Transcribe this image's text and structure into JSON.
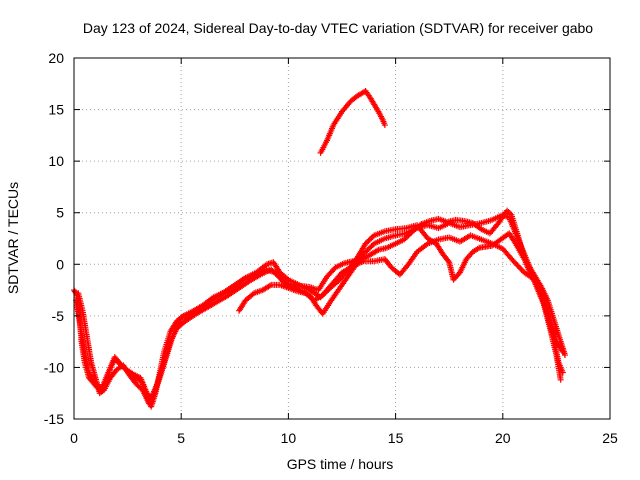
{
  "chart_data": {
    "type": "scatter",
    "title": "Day 123 of 2024, Sidereal Day-to-day VTEC variation (SDTVAR) for receiver gabo",
    "xlabel": "GPS time / hours",
    "ylabel": "SDTVAR / TECUs",
    "xlim": [
      0,
      25
    ],
    "ylim": [
      -15,
      20
    ],
    "x_ticks": [
      0,
      5,
      10,
      15,
      20,
      25
    ],
    "y_ticks": [
      -15,
      -10,
      -5,
      0,
      5,
      10,
      15,
      20
    ],
    "grid": true,
    "marker": "+",
    "color": "#ff0000",
    "traces": [
      [
        [
          0,
          -2.5
        ],
        [
          0.15,
          -3
        ],
        [
          0.25,
          -5
        ],
        [
          0.35,
          -7.5
        ],
        [
          0.5,
          -9.5
        ],
        [
          0.7,
          -11
        ],
        [
          0.9,
          -11.5
        ],
        [
          1.1,
          -12
        ],
        [
          1.3,
          -12.3
        ],
        [
          1.5,
          -11.5
        ],
        [
          1.7,
          -10
        ],
        [
          1.9,
          -9
        ],
        [
          2.1,
          -9.5
        ],
        [
          2.3,
          -10
        ],
        [
          2.6,
          -10.5
        ],
        [
          2.9,
          -11
        ],
        [
          3.2,
          -11.5
        ],
        [
          3.4,
          -13
        ],
        [
          3.6,
          -13.8
        ],
        [
          3.8,
          -12.5
        ],
        [
          4.0,
          -10.5
        ],
        [
          4.2,
          -8.5
        ],
        [
          4.5,
          -6.5
        ],
        [
          4.8,
          -5.5
        ],
        [
          5.1,
          -5.0
        ],
        [
          5.5,
          -4.6
        ],
        [
          6.0,
          -4.0
        ],
        [
          6.5,
          -3.2
        ],
        [
          7.0,
          -2.7
        ],
        [
          7.5,
          -2.0
        ],
        [
          8.0,
          -1.3
        ],
        [
          8.5,
          -0.8
        ],
        [
          9.0,
          0.0
        ],
        [
          9.3,
          0.2
        ],
        [
          9.6,
          -0.8
        ],
        [
          10.0,
          -1.5
        ],
        [
          10.5,
          -2.0
        ],
        [
          11.0,
          -2.5
        ],
        [
          11.5,
          -3.2
        ],
        [
          12.0,
          -2.0
        ],
        [
          12.5,
          -0.8
        ],
        [
          13.0,
          -0.2
        ],
        [
          13.5,
          0.3
        ],
        [
          14.0,
          0.3
        ],
        [
          14.5,
          0.5
        ],
        [
          14.8,
          -0.3
        ],
        [
          15.2,
          -1.0
        ],
        [
          15.6,
          0.0
        ],
        [
          16.0,
          1.2
        ],
        [
          16.5,
          2.0
        ],
        [
          17.0,
          2.4
        ],
        [
          17.5,
          2.6
        ],
        [
          18.0,
          2.2
        ],
        [
          18.5,
          2.8
        ],
        [
          19.0,
          2.4
        ],
        [
          19.5,
          2.0
        ],
        [
          20.0,
          1.5
        ],
        [
          20.5,
          0.3
        ],
        [
          21.0,
          -0.8
        ],
        [
          21.5,
          -1.5
        ],
        [
          22.0,
          -3.5
        ],
        [
          22.3,
          -6.0
        ],
        [
          22.5,
          -7.5
        ],
        [
          22.8,
          -8.5
        ]
      ],
      [
        [
          0.1,
          -3.5
        ],
        [
          0.3,
          -6
        ],
        [
          0.5,
          -8.5
        ],
        [
          0.7,
          -10.5
        ],
        [
          0.9,
          -11.2
        ],
        [
          1.1,
          -11.8
        ],
        [
          1.3,
          -12.0
        ],
        [
          1.6,
          -10.5
        ],
        [
          1.9,
          -9.2
        ],
        [
          2.2,
          -9.8
        ],
        [
          2.5,
          -10.3
        ],
        [
          2.8,
          -10.7
        ],
        [
          3.1,
          -11.0
        ],
        [
          3.4,
          -12.5
        ],
        [
          3.6,
          -13.0
        ],
        [
          3.9,
          -11.5
        ],
        [
          4.2,
          -9.5
        ],
        [
          4.5,
          -7.5
        ],
        [
          4.8,
          -6.2
        ],
        [
          5.2,
          -5.5
        ],
        [
          5.7,
          -4.8
        ],
        [
          6.2,
          -4.2
        ],
        [
          6.7,
          -3.6
        ],
        [
          7.2,
          -3.0
        ],
        [
          7.7,
          -2.3
        ],
        [
          8.2,
          -1.6
        ],
        [
          8.7,
          -1.0
        ],
        [
          9.2,
          -0.5
        ],
        [
          9.6,
          -1.3
        ],
        [
          10.0,
          -2.0
        ],
        [
          10.5,
          -2.5
        ],
        [
          11.0,
          -3.0
        ],
        [
          11.3,
          -4.0
        ],
        [
          11.6,
          -4.8
        ],
        [
          12.0,
          -3.5
        ],
        [
          12.5,
          -2.0
        ],
        [
          13.0,
          -0.5
        ],
        [
          13.5,
          1.0
        ],
        [
          14.0,
          2.0
        ],
        [
          14.5,
          2.5
        ],
        [
          15.0,
          2.8
        ],
        [
          15.5,
          3.0
        ],
        [
          16.0,
          3.5
        ],
        [
          16.5,
          3.8
        ],
        [
          17.0,
          3.5
        ],
        [
          17.5,
          4.0
        ],
        [
          18.0,
          3.6
        ],
        [
          18.5,
          3.8
        ],
        [
          19.0,
          4.0
        ],
        [
          19.5,
          4.3
        ],
        [
          20.0,
          4.8
        ],
        [
          20.3,
          4.5
        ],
        [
          20.6,
          3.0
        ],
        [
          21.0,
          1.0
        ],
        [
          21.4,
          -1.0
        ],
        [
          21.8,
          -3.0
        ],
        [
          22.1,
          -5.0
        ],
        [
          22.4,
          -7.5
        ],
        [
          22.6,
          -9.5
        ],
        [
          22.8,
          -10.5
        ]
      ],
      [
        [
          7.7,
          -4.5
        ],
        [
          8.0,
          -3.5
        ],
        [
          8.4,
          -2.8
        ],
        [
          8.8,
          -2.5
        ],
        [
          9.2,
          -2.0
        ],
        [
          9.6,
          -2.0
        ],
        [
          10.0,
          -2.3
        ],
        [
          10.4,
          -2.6
        ],
        [
          10.8,
          -2.8
        ],
        [
          11.2,
          -3.5
        ],
        [
          11.6,
          -3.0
        ],
        [
          12.0,
          -2.2
        ],
        [
          12.4,
          -1.5
        ],
        [
          12.8,
          -0.5
        ],
        [
          13.2,
          0.6
        ],
        [
          13.6,
          2.0
        ],
        [
          14.0,
          2.8
        ],
        [
          14.5,
          3.2
        ],
        [
          15.0,
          3.4
        ],
        [
          15.5,
          3.5
        ],
        [
          16.0,
          3.8
        ],
        [
          16.5,
          2.5
        ],
        [
          16.9,
          2.0
        ],
        [
          17.2,
          1.0
        ],
        [
          17.5,
          0.2
        ],
        [
          17.7,
          -1.5
        ],
        [
          18.0,
          -0.8
        ],
        [
          18.3,
          0.5
        ],
        [
          18.6,
          1.2
        ],
        [
          18.9,
          1.6
        ],
        [
          19.2,
          1.7
        ],
        [
          19.5,
          1.8
        ],
        [
          19.9,
          2.4
        ],
        [
          20.3,
          3.0
        ],
        [
          20.6,
          2.0
        ],
        [
          21.0,
          0.5
        ],
        [
          21.4,
          -0.8
        ],
        [
          21.8,
          -2.2
        ],
        [
          22.1,
          -3.5
        ],
        [
          22.4,
          -5.5
        ],
        [
          22.7,
          -7.5
        ],
        [
          22.9,
          -8.8
        ]
      ],
      [
        [
          11.5,
          10.8
        ],
        [
          11.8,
          12.0
        ],
        [
          12.1,
          13.5
        ],
        [
          12.5,
          14.8
        ],
        [
          12.9,
          15.8
        ],
        [
          13.2,
          16.3
        ],
        [
          13.6,
          16.8
        ],
        [
          13.8,
          16.2
        ],
        [
          14.0,
          15.5
        ],
        [
          14.2,
          14.8
        ],
        [
          14.4,
          14.0
        ],
        [
          14.5,
          13.5
        ]
      ],
      [
        [
          0.2,
          -2.8
        ],
        [
          0.4,
          -4.5
        ],
        [
          0.6,
          -7.0
        ],
        [
          0.8,
          -9.5
        ],
        [
          1.0,
          -11.0
        ],
        [
          1.2,
          -12.5
        ],
        [
          1.4,
          -12.2
        ],
        [
          1.7,
          -11.0
        ],
        [
          2.0,
          -10.2
        ],
        [
          2.3,
          -9.8
        ],
        [
          2.6,
          -10.8
        ],
        [
          2.9,
          -11.6
        ],
        [
          3.2,
          -12.2
        ],
        [
          3.5,
          -13.5
        ],
        [
          3.7,
          -12.8
        ],
        [
          4.0,
          -11.0
        ],
        [
          4.3,
          -9.0
        ],
        [
          4.6,
          -7.0
        ],
        [
          5.0,
          -5.2
        ],
        [
          5.4,
          -4.9
        ],
        [
          5.9,
          -4.4
        ],
        [
          6.4,
          -3.5
        ],
        [
          6.9,
          -2.9
        ],
        [
          7.4,
          -2.4
        ],
        [
          7.9,
          -1.5
        ],
        [
          8.4,
          -1.2
        ],
        [
          8.9,
          -0.5
        ],
        [
          9.4,
          -0.8
        ],
        [
          9.8,
          -1.8
        ],
        [
          10.2,
          -2.2
        ],
        [
          10.6,
          -2.1
        ],
        [
          11.0,
          -2.2
        ],
        [
          11.4,
          -2.5
        ],
        [
          11.8,
          -1.2
        ],
        [
          12.2,
          -0.3
        ],
        [
          12.6,
          0.1
        ],
        [
          13.0,
          0.3
        ],
        [
          13.4,
          0.5
        ],
        [
          13.8,
          0.9
        ],
        [
          14.2,
          1.4
        ],
        [
          14.6,
          1.6
        ],
        [
          15.0,
          2.0
        ],
        [
          15.4,
          2.4
        ],
        [
          15.8,
          3.2
        ],
        [
          16.2,
          3.9
        ],
        [
          16.6,
          4.2
        ],
        [
          17.0,
          4.4
        ],
        [
          17.4,
          4.1
        ],
        [
          17.8,
          4.3
        ],
        [
          18.2,
          4.2
        ],
        [
          18.6,
          4.0
        ],
        [
          19.0,
          3.4
        ],
        [
          19.4,
          3.0
        ],
        [
          19.8,
          4.0
        ],
        [
          20.2,
          5.2
        ],
        [
          20.4,
          4.8
        ],
        [
          20.7,
          2.8
        ],
        [
          21.1,
          0.0
        ],
        [
          21.5,
          -1.8
        ],
        [
          21.9,
          -3.8
        ],
        [
          22.2,
          -6.2
        ],
        [
          22.5,
          -8.8
        ],
        [
          22.7,
          -11.2
        ]
      ]
    ]
  }
}
